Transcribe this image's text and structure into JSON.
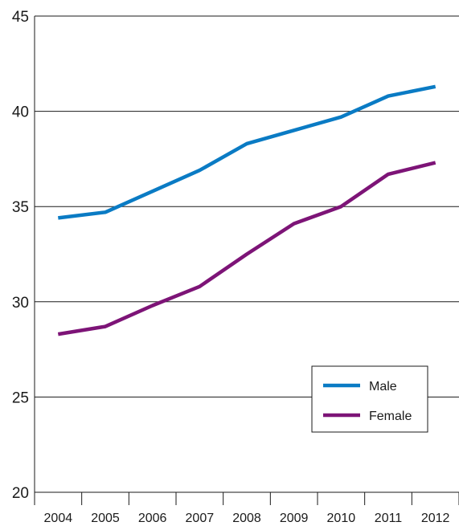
{
  "chart_data": {
    "type": "line",
    "categories": [
      "2004",
      "2005",
      "2006",
      "2007",
      "2008",
      "2009",
      "2010",
      "2011",
      "2012"
    ],
    "ylim": [
      20,
      45
    ],
    "yticks": [
      20,
      25,
      30,
      35,
      40,
      45
    ],
    "grid": true,
    "legend_position": "bottom-right",
    "series": [
      {
        "name": "Male",
        "color": "#0a7bc4",
        "values": [
          34.4,
          34.7,
          35.8,
          36.9,
          38.3,
          39.0,
          39.7,
          40.8,
          41.3
        ]
      },
      {
        "name": "Female",
        "color": "#7d1477",
        "values": [
          28.3,
          28.7,
          29.8,
          30.8,
          32.5,
          34.1,
          35.0,
          36.7,
          37.3
        ]
      }
    ]
  }
}
